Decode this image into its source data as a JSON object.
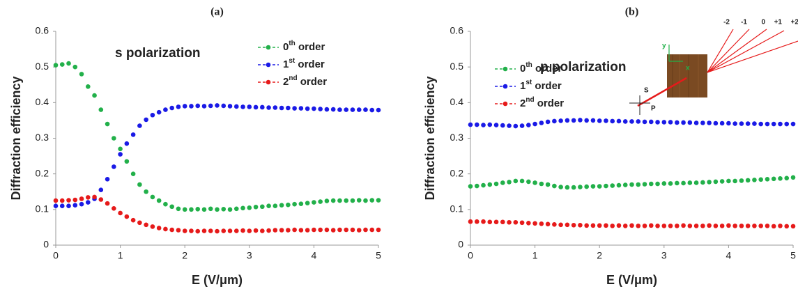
{
  "chart_data": [
    {
      "type": "scatter",
      "title": "(a)",
      "annotation": "s polarization",
      "xlabel": "E (V/μm)",
      "ylabel": "Diffraction efficiency",
      "x": [
        0,
        0.1,
        0.2,
        0.3,
        0.4,
        0.5,
        0.6,
        0.7,
        0.8,
        0.9,
        1,
        1.1,
        1.2,
        1.3,
        1.4,
        1.5,
        1.6,
        1.7,
        1.8,
        1.9,
        2,
        2.1,
        2.2,
        2.3,
        2.4,
        2.5,
        2.6,
        2.7,
        2.8,
        2.9,
        3,
        3.1,
        3.2,
        3.3,
        3.4,
        3.5,
        3.6,
        3.7,
        3.8,
        3.9,
        4,
        4.1,
        4.2,
        4.3,
        4.4,
        4.5,
        4.6,
        4.7,
        4.8,
        4.9,
        5
      ],
      "series": [
        {
          "name": "0th order",
          "color": "#22b04a",
          "values": [
            0.505,
            0.507,
            0.51,
            0.5,
            0.48,
            0.445,
            0.42,
            0.38,
            0.34,
            0.3,
            0.27,
            0.235,
            0.2,
            0.17,
            0.15,
            0.135,
            0.125,
            0.115,
            0.108,
            0.102,
            0.1,
            0.1,
            0.101,
            0.1,
            0.102,
            0.1,
            0.101,
            0.1,
            0.102,
            0.104,
            0.105,
            0.107,
            0.108,
            0.11,
            0.11,
            0.112,
            0.113,
            0.115,
            0.116,
            0.118,
            0.12,
            0.122,
            0.124,
            0.125,
            0.125,
            0.125,
            0.125,
            0.126,
            0.125,
            0.126,
            0.126
          ]
        },
        {
          "name": "1st order",
          "color": "#1a1ae6",
          "values": [
            0.11,
            0.11,
            0.11,
            0.112,
            0.115,
            0.12,
            0.13,
            0.155,
            0.185,
            0.22,
            0.255,
            0.285,
            0.31,
            0.335,
            0.352,
            0.365,
            0.373,
            0.38,
            0.385,
            0.388,
            0.39,
            0.39,
            0.391,
            0.39,
            0.391,
            0.392,
            0.391,
            0.39,
            0.389,
            0.388,
            0.388,
            0.387,
            0.387,
            0.386,
            0.386,
            0.385,
            0.385,
            0.384,
            0.384,
            0.383,
            0.383,
            0.382,
            0.381,
            0.381,
            0.38,
            0.38,
            0.38,
            0.38,
            0.38,
            0.379,
            0.379
          ]
        },
        {
          "name": "2nd order",
          "color": "#e61a1a",
          "values": [
            0.125,
            0.125,
            0.126,
            0.127,
            0.13,
            0.134,
            0.135,
            0.128,
            0.117,
            0.103,
            0.09,
            0.08,
            0.07,
            0.063,
            0.057,
            0.052,
            0.048,
            0.045,
            0.043,
            0.042,
            0.04,
            0.04,
            0.039,
            0.04,
            0.04,
            0.039,
            0.04,
            0.04,
            0.04,
            0.041,
            0.04,
            0.041,
            0.04,
            0.041,
            0.042,
            0.042,
            0.042,
            0.043,
            0.042,
            0.042,
            0.043,
            0.043,
            0.043,
            0.042,
            0.043,
            0.043,
            0.043,
            0.042,
            0.043,
            0.043,
            0.043
          ]
        }
      ],
      "xlim": [
        0,
        5
      ],
      "xticks": [
        0,
        1,
        2,
        3,
        4,
        5
      ],
      "ylim": [
        0,
        0.6
      ],
      "yticks": [
        0,
        0.1,
        0.2,
        0.3,
        0.4,
        0.5,
        0.6
      ],
      "grid": false
    },
    {
      "type": "scatter",
      "title": "(b)",
      "annotation": "p polarization",
      "xlabel": "E (V/μm)",
      "ylabel": "Diffraction efficiency",
      "inset_labels": [
        "-2",
        "-1",
        "0",
        "+1",
        "+2",
        "y",
        "x",
        "S",
        "P"
      ],
      "x": [
        0,
        0.1,
        0.2,
        0.3,
        0.4,
        0.5,
        0.6,
        0.7,
        0.8,
        0.9,
        1,
        1.1,
        1.2,
        1.3,
        1.4,
        1.5,
        1.6,
        1.7,
        1.8,
        1.9,
        2,
        2.1,
        2.2,
        2.3,
        2.4,
        2.5,
        2.6,
        2.7,
        2.8,
        2.9,
        3,
        3.1,
        3.2,
        3.3,
        3.4,
        3.5,
        3.6,
        3.7,
        3.8,
        3.9,
        4,
        4.1,
        4.2,
        4.3,
        4.4,
        4.5,
        4.6,
        4.7,
        4.8,
        4.9,
        5
      ],
      "series": [
        {
          "name": "0th order",
          "color": "#22b04a",
          "values": [
            0.165,
            0.166,
            0.168,
            0.17,
            0.172,
            0.175,
            0.177,
            0.18,
            0.18,
            0.178,
            0.175,
            0.172,
            0.17,
            0.166,
            0.163,
            0.162,
            0.162,
            0.163,
            0.164,
            0.165,
            0.165,
            0.166,
            0.167,
            0.168,
            0.169,
            0.17,
            0.17,
            0.171,
            0.172,
            0.172,
            0.173,
            0.173,
            0.174,
            0.174,
            0.175,
            0.175,
            0.176,
            0.177,
            0.178,
            0.179,
            0.18,
            0.18,
            0.181,
            0.182,
            0.183,
            0.184,
            0.185,
            0.186,
            0.187,
            0.188,
            0.19
          ]
        },
        {
          "name": "1st order",
          "color": "#1a1ae6",
          "values": [
            0.338,
            0.338,
            0.337,
            0.338,
            0.337,
            0.336,
            0.335,
            0.334,
            0.335,
            0.337,
            0.34,
            0.343,
            0.346,
            0.348,
            0.349,
            0.35,
            0.35,
            0.351,
            0.35,
            0.35,
            0.349,
            0.349,
            0.348,
            0.348,
            0.347,
            0.347,
            0.347,
            0.346,
            0.346,
            0.345,
            0.345,
            0.345,
            0.344,
            0.344,
            0.344,
            0.343,
            0.343,
            0.343,
            0.342,
            0.342,
            0.342,
            0.341,
            0.341,
            0.341,
            0.341,
            0.34,
            0.34,
            0.34,
            0.34,
            0.34,
            0.34
          ]
        },
        {
          "name": "2nd order",
          "color": "#e61a1a",
          "values": [
            0.066,
            0.066,
            0.066,
            0.065,
            0.065,
            0.065,
            0.064,
            0.064,
            0.063,
            0.062,
            0.061,
            0.06,
            0.059,
            0.058,
            0.057,
            0.057,
            0.056,
            0.056,
            0.055,
            0.055,
            0.055,
            0.055,
            0.054,
            0.055,
            0.054,
            0.055,
            0.054,
            0.054,
            0.055,
            0.054,
            0.054,
            0.054,
            0.054,
            0.055,
            0.054,
            0.054,
            0.054,
            0.055,
            0.054,
            0.054,
            0.055,
            0.054,
            0.054,
            0.054,
            0.054,
            0.054,
            0.054,
            0.053,
            0.054,
            0.053,
            0.053
          ]
        }
      ],
      "xlim": [
        0,
        5
      ],
      "xticks": [
        0,
        1,
        2,
        3,
        4,
        5
      ],
      "ylim": [
        0,
        0.6
      ],
      "yticks": [
        0,
        0.1,
        0.2,
        0.3,
        0.4,
        0.5,
        0.6
      ],
      "grid": false
    }
  ]
}
